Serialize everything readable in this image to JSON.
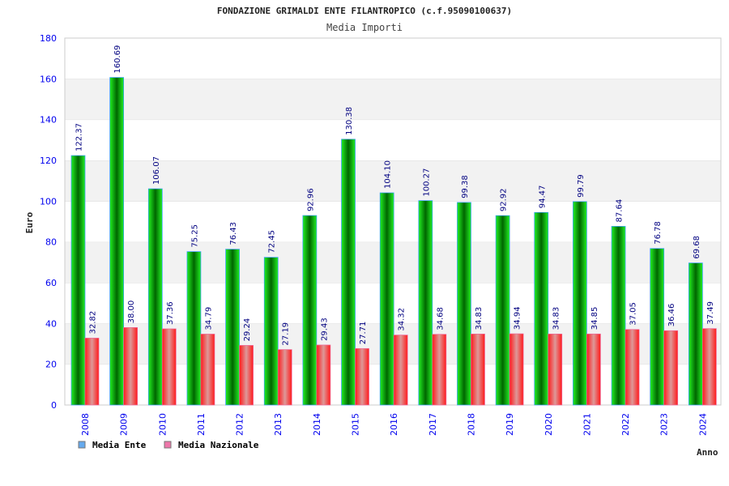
{
  "chart_data": {
    "type": "bar",
    "title": "FONDAZIONE GRIMALDI ENTE FILANTROPICO (c.f.95090100637)",
    "subtitle": "Media Importi",
    "xlabel": "Anno",
    "ylabel": "Euro",
    "ylim": [
      0,
      180
    ],
    "yticks": [
      "0",
      "20",
      "40",
      "60",
      "80",
      "100",
      "120",
      "140",
      "160",
      "180"
    ],
    "categories": [
      "2008",
      "2009",
      "2010",
      "2011",
      "2012",
      "2013",
      "2014",
      "2015",
      "2016",
      "2017",
      "2018",
      "2019",
      "2020",
      "2021",
      "2022",
      "2023",
      "2024"
    ],
    "series": [
      {
        "name": "Media Ente",
        "color": "#00cc00",
        "legend_color": "#66aaee",
        "values": [
          122.37,
          160.69,
          106.07,
          75.25,
          76.43,
          72.45,
          92.96,
          130.38,
          104.1,
          100.27,
          99.38,
          92.92,
          94.47,
          99.79,
          87.64,
          76.78,
          69.68
        ],
        "labels": [
          "122.37",
          "160.69",
          "106.07",
          "75.25",
          "76.43",
          "72.45",
          "92.96",
          "130.38",
          "104.10",
          "100.27",
          "99.38",
          "92.92",
          "94.47",
          "99.79",
          "87.64",
          "76.78",
          "69.68"
        ]
      },
      {
        "name": "Media Nazionale",
        "color": "#ff2020",
        "legend_color": "#ee77aa",
        "values": [
          32.82,
          38.0,
          37.36,
          34.79,
          29.24,
          27.19,
          29.43,
          27.71,
          34.32,
          34.68,
          34.83,
          34.94,
          34.83,
          34.85,
          37.05,
          36.46,
          37.49
        ],
        "labels": [
          "32.82",
          "38.00",
          "37.36",
          "34.79",
          "29.24",
          "27.19",
          "29.43",
          "27.71",
          "34.32",
          "34.68",
          "34.83",
          "34.94",
          "34.83",
          "34.85",
          "37.05",
          "36.46",
          "37.49"
        ]
      }
    ],
    "grid": true,
    "legend": "bottom-left"
  }
}
